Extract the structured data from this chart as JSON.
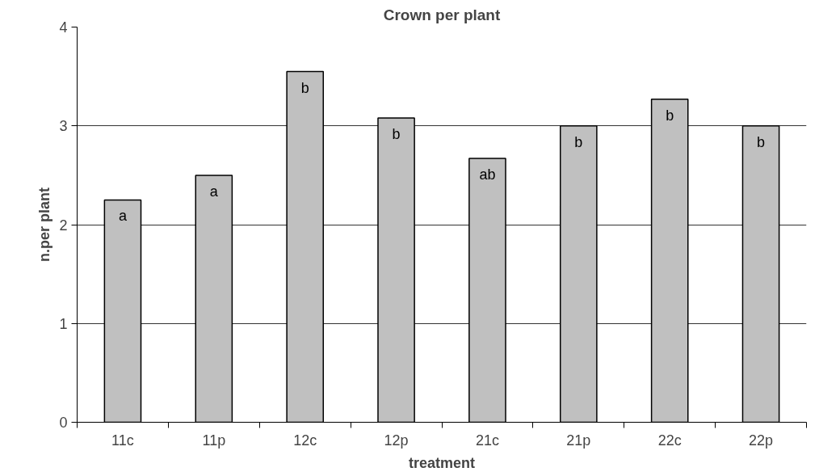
{
  "chart_data": {
    "type": "bar",
    "title": "Crown per plant",
    "xlabel": "treatment",
    "ylabel": "n.per plant",
    "categories": [
      "11c",
      "11p",
      "12c",
      "12p",
      "21c",
      "21p",
      "22c",
      "22p"
    ],
    "values": [
      2.25,
      2.5,
      3.55,
      3.08,
      2.67,
      3.0,
      3.27,
      3.0
    ],
    "color": "#c0c0c0",
    "ylim": [
      0,
      4
    ],
    "yticks": [
      0,
      1,
      2,
      3,
      4
    ],
    "grid": "y",
    "annotations": [
      "a",
      "a",
      "b",
      "b",
      "ab",
      "b",
      "b",
      "b"
    ]
  }
}
